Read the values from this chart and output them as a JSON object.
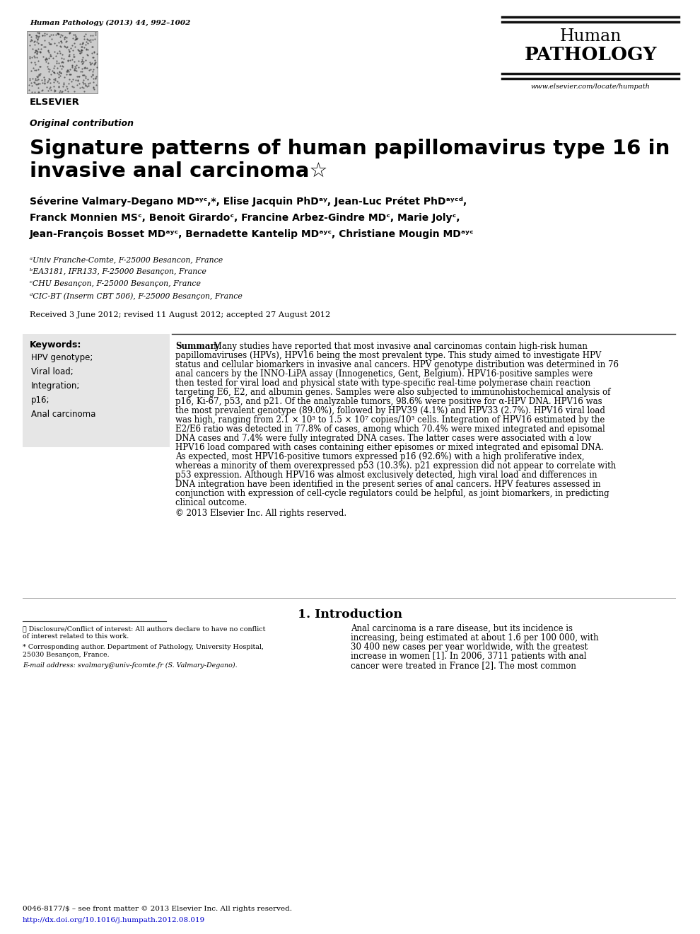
{
  "journal_citation": "Human Pathology (2013) 44, 992–1002",
  "journal_name_line1": "Human",
  "journal_name_line2": "PATHOLOGY",
  "journal_url": "www.elsevier.com/locate/humpath",
  "section_label": "Original contribution",
  "article_title_line1": "Signature patterns of human papillomavirus type 16 in",
  "article_title_line2": "invasive anal carcinoma☆",
  "authors_line1": "Séverine Valmary-Degano MDᵃʸᶜ,*, Elise Jacquin PhDᵃʸ, Jean-Luc Prétet PhDᵃʸᶜᵈ,",
  "authors_line2": "Franck Monnien MSᶜ, Benoit Girardoᶜ, Francine Arbez-Gindre MDᶜ, Marie Jolyᶜ,",
  "authors_line3": "Jean-François Bosset MDᵃʸᶜ, Bernadette Kantelip MDᵃʸᶜ, Christiane Mougin MDᵃʸᶜ",
  "affil_a": "ᵃUniv Franche-Comte, F-25000 Besancon, France",
  "affil_b": "ᵇEA3181, IFR133, F-25000 Besançon, France",
  "affil_c": "ᶜCHU Besançon, F-25000 Besançon, France",
  "affil_d": "ᵈCIC-BT (Inserm CBT 506), F-25000 Besançon, France",
  "received": "Received 3 June 2012; revised 11 August 2012; accepted 27 August 2012",
  "keywords_title": "Keywords:",
  "keywords": [
    "HPV genotype;",
    "Viral load;",
    "Integration;",
    "p16;",
    "Anal carcinoma"
  ],
  "summary_bold": "Summary",
  "summary_lines": [
    " Many studies have reported that most invasive anal carcinomas contain high-risk human",
    "papillomaviruses (HPVs), HPV16 being the most prevalent type. This study aimed to investigate HPV",
    "status and cellular biomarkers in invasive anal cancers. HPV genotype distribution was determined in 76",
    "anal cancers by the INNO-LiPA assay (Innogenetics, Gent, Belgium). HPV16-positive samples were",
    "then tested for viral load and physical state with type-specific real-time polymerase chain reaction",
    "targeting E6, E2, and albumin genes. Samples were also subjected to immunohistochemical analysis of",
    "p16, Ki-67, p53, and p21. Of the analyzable tumors, 98.6% were positive for α-HPV DNA. HPV16 was",
    "the most prevalent genotype (89.0%), followed by HPV39 (4.1%) and HPV33 (2.7%). HPV16 viral load",
    "was high, ranging from 2.1 × 10³ to 1.5 × 10⁷ copies/10³ cells. Integration of HPV16 estimated by the",
    "E2/E6 ratio was detected in 77.8% of cases, among which 70.4% were mixed integrated and episomal",
    "DNA cases and 7.4% were fully integrated DNA cases. The latter cases were associated with a low",
    "HPV16 load compared with cases containing either episomes or mixed integrated and episomal DNA.",
    "As expected, most HPV16-positive tumors expressed p16 (92.6%) with a high proliferative index,",
    "whereas a minority of them overexpressed p53 (10.3%). p21 expression did not appear to correlate with",
    "p53 expression. Although HPV16 was almost exclusively detected, high viral load and differences in",
    "DNA integration have been identified in the present series of anal cancers. HPV features assessed in",
    "conjunction with expression of cell-cycle regulators could be helpful, as joint biomarkers, in predicting",
    "clinical outcome."
  ],
  "copyright": "© 2013 Elsevier Inc. All rights reserved.",
  "intro_heading": "1. Introduction",
  "intro_lines": [
    "Anal carcinoma is a rare disease, but its incidence is",
    "increasing, being estimated at about 1.6 per 100 000, with",
    "30 400 new cases per year worldwide, with the greatest",
    "increase in women [1]. In 2006, 3711 patients with anal",
    "cancer were treated in France [2]. The most common"
  ],
  "footnote_star_lines": [
    "☆ Disclosure/Conflict of interest: All authors declare to have no conflict",
    "of interest related to this work."
  ],
  "footnote_corr_lines": [
    "* Corresponding author. Department of Pathology, University Hospital,",
    "25030 Besançon, France."
  ],
  "footnote_email": "E-mail address: svalmary@univ-fcomte.fr (S. Valmary-Degano).",
  "footer_issn": "0046-8177/$ – see front matter © 2013 Elsevier Inc. All rights reserved.",
  "footer_doi": "http://dx.doi.org/10.1016/j.humpath.2012.08.019",
  "bg_color": "#ffffff",
  "keyword_box_color": "#e6e6e6",
  "text_color": "#000000",
  "header_line_color": "#111111"
}
